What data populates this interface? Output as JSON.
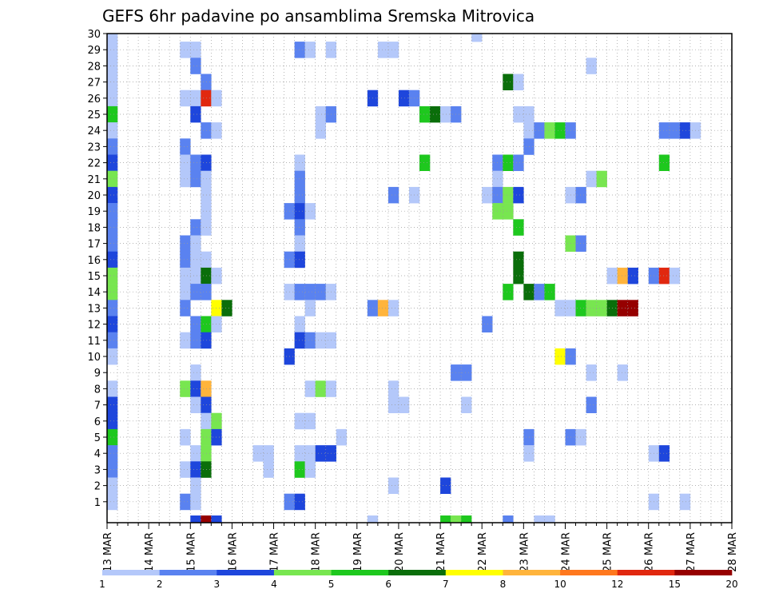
{
  "chart_data": {
    "type": "heatmap",
    "title": "GEFS 6hr padavine po ansamblima Sremska Mitrovica",
    "xlabel": "",
    "ylabel": "",
    "x_ticks": [
      "13 MAR",
      "14 MAR",
      "15 MAR",
      "16 MAR",
      "17 MAR",
      "18 MAR",
      "19 MAR",
      "20 MAR",
      "21 MAR",
      "22 MAR",
      "23 MAR",
      "24 MAR",
      "25 MAR",
      "26 MAR",
      "27 MAR",
      "28 MAR"
    ],
    "y_ticks": [
      1,
      2,
      3,
      4,
      5,
      6,
      7,
      8,
      9,
      10,
      11,
      12,
      13,
      14,
      15,
      16,
      17,
      18,
      19,
      20,
      21,
      22,
      23,
      24,
      25,
      26,
      27,
      28,
      29,
      30
    ],
    "ylim": [
      0,
      30
    ],
    "steps_per_day": 4,
    "grid": true,
    "color_scale": {
      "bounds": [
        1,
        2,
        3,
        4,
        5,
        6,
        7,
        8,
        10,
        12,
        15,
        20
      ],
      "colors": [
        "#b4c8fa",
        "#5a82f0",
        "#1e46dc",
        "#78e650",
        "#1ec81e",
        "#0a6e0a",
        "#ffff00",
        "#ffb43c",
        "#ff781e",
        "#e1280f",
        "#960000"
      ]
    },
    "cells": [
      {
        "x": 0,
        "y": 30,
        "c": 0
      },
      {
        "x": 0,
        "y": 29,
        "c": 0
      },
      {
        "x": 0,
        "y": 28,
        "c": 0
      },
      {
        "x": 0,
        "y": 27,
        "c": 0
      },
      {
        "x": 0,
        "y": 26,
        "c": 0
      },
      {
        "x": 0,
        "y": 25,
        "c": 4
      },
      {
        "x": 0,
        "y": 24,
        "c": 0
      },
      {
        "x": 0,
        "y": 23,
        "c": 1
      },
      {
        "x": 0,
        "y": 22,
        "c": 2
      },
      {
        "x": 0,
        "y": 21,
        "c": 3
      },
      {
        "x": 0,
        "y": 20,
        "c": 2
      },
      {
        "x": 0,
        "y": 19,
        "c": 1
      },
      {
        "x": 0,
        "y": 18,
        "c": 1
      },
      {
        "x": 0,
        "y": 17,
        "c": 1
      },
      {
        "x": 0,
        "y": 16,
        "c": 2
      },
      {
        "x": 0,
        "y": 15,
        "c": 3
      },
      {
        "x": 0,
        "y": 14,
        "c": 3
      },
      {
        "x": 0,
        "y": 13,
        "c": 1
      },
      {
        "x": 0,
        "y": 12,
        "c": 2
      },
      {
        "x": 0,
        "y": 11,
        "c": 1
      },
      {
        "x": 0,
        "y": 10,
        "c": 0
      },
      {
        "x": 0,
        "y": 8,
        "c": 0
      },
      {
        "x": 0,
        "y": 7,
        "c": 2
      },
      {
        "x": 0,
        "y": 6,
        "c": 2
      },
      {
        "x": 0,
        "y": 5,
        "c": 4
      },
      {
        "x": 0,
        "y": 4,
        "c": 1
      },
      {
        "x": 0,
        "y": 3,
        "c": 1
      },
      {
        "x": 0,
        "y": 2,
        "c": 0
      },
      {
        "x": 0,
        "y": 1,
        "c": 0
      },
      {
        "x": 7,
        "y": 29,
        "c": 0
      },
      {
        "x": 8,
        "y": 29,
        "c": 0
      },
      {
        "x": 8,
        "y": 28,
        "c": 1
      },
      {
        "x": 9,
        "y": 27,
        "c": 1
      },
      {
        "x": 7,
        "y": 26,
        "c": 0
      },
      {
        "x": 8,
        "y": 26,
        "c": 0
      },
      {
        "x": 9,
        "y": 26,
        "c": 9
      },
      {
        "x": 10,
        "y": 26,
        "c": 0
      },
      {
        "x": 8,
        "y": 25,
        "c": 2
      },
      {
        "x": 9,
        "y": 24,
        "c": 1
      },
      {
        "x": 10,
        "y": 24,
        "c": 0
      },
      {
        "x": 7,
        "y": 23,
        "c": 1
      },
      {
        "x": 7,
        "y": 22,
        "c": 0
      },
      {
        "x": 8,
        "y": 22,
        "c": 1
      },
      {
        "x": 9,
        "y": 22,
        "c": 2
      },
      {
        "x": 7,
        "y": 21,
        "c": 0
      },
      {
        "x": 8,
        "y": 21,
        "c": 1
      },
      {
        "x": 9,
        "y": 21,
        "c": 0
      },
      {
        "x": 9,
        "y": 20,
        "c": 0
      },
      {
        "x": 9,
        "y": 19,
        "c": 0
      },
      {
        "x": 8,
        "y": 18,
        "c": 1
      },
      {
        "x": 9,
        "y": 18,
        "c": 0
      },
      {
        "x": 7,
        "y": 17,
        "c": 1
      },
      {
        "x": 8,
        "y": 17,
        "c": 0
      },
      {
        "x": 7,
        "y": 16,
        "c": 1
      },
      {
        "x": 8,
        "y": 16,
        "c": 0
      },
      {
        "x": 9,
        "y": 16,
        "c": 0
      },
      {
        "x": 7,
        "y": 15,
        "c": 0
      },
      {
        "x": 8,
        "y": 15,
        "c": 0
      },
      {
        "x": 9,
        "y": 15,
        "c": 5
      },
      {
        "x": 10,
        "y": 15,
        "c": 0
      },
      {
        "x": 7,
        "y": 14,
        "c": 0
      },
      {
        "x": 8,
        "y": 14,
        "c": 1
      },
      {
        "x": 9,
        "y": 14,
        "c": 1
      },
      {
        "x": 7,
        "y": 13,
        "c": 1
      },
      {
        "x": 10,
        "y": 13,
        "c": 6
      },
      {
        "x": 11,
        "y": 13,
        "c": 5
      },
      {
        "x": 8,
        "y": 12,
        "c": 1
      },
      {
        "x": 9,
        "y": 12,
        "c": 4
      },
      {
        "x": 10,
        "y": 12,
        "c": 0
      },
      {
        "x": 7,
        "y": 11,
        "c": 0
      },
      {
        "x": 8,
        "y": 11,
        "c": 1
      },
      {
        "x": 9,
        "y": 11,
        "c": 2
      },
      {
        "x": 8,
        "y": 9,
        "c": 0
      },
      {
        "x": 7,
        "y": 8,
        "c": 3
      },
      {
        "x": 8,
        "y": 8,
        "c": 2
      },
      {
        "x": 9,
        "y": 8,
        "c": 7
      },
      {
        "x": 8,
        "y": 7,
        "c": 0
      },
      {
        "x": 9,
        "y": 7,
        "c": 2
      },
      {
        "x": 9,
        "y": 6,
        "c": 0
      },
      {
        "x": 10,
        "y": 6,
        "c": 3
      },
      {
        "x": 7,
        "y": 5,
        "c": 0
      },
      {
        "x": 9,
        "y": 5,
        "c": 3
      },
      {
        "x": 10,
        "y": 5,
        "c": 2
      },
      {
        "x": 8,
        "y": 4,
        "c": 0
      },
      {
        "x": 9,
        "y": 4,
        "c": 3
      },
      {
        "x": 7,
        "y": 3,
        "c": 0
      },
      {
        "x": 8,
        "y": 3,
        "c": 2
      },
      {
        "x": 9,
        "y": 3,
        "c": 5
      },
      {
        "x": 8,
        "y": 2,
        "c": 0
      },
      {
        "x": 7,
        "y": 1,
        "c": 1
      },
      {
        "x": 8,
        "y": 1,
        "c": 0
      },
      {
        "x": 8,
        "y": 0,
        "c": 2
      },
      {
        "x": 9,
        "y": 0,
        "c": 10
      },
      {
        "x": 10,
        "y": 0,
        "c": 2
      },
      {
        "x": 14,
        "y": 4,
        "c": 0
      },
      {
        "x": 15,
        "y": 4,
        "c": 0
      },
      {
        "x": 15,
        "y": 3,
        "c": 0
      },
      {
        "x": 18,
        "y": 29,
        "c": 1
      },
      {
        "x": 19,
        "y": 29,
        "c": 0
      },
      {
        "x": 21,
        "y": 29,
        "c": 0
      },
      {
        "x": 20,
        "y": 25,
        "c": 0
      },
      {
        "x": 21,
        "y": 25,
        "c": 1
      },
      {
        "x": 20,
        "y": 24,
        "c": 0
      },
      {
        "x": 18,
        "y": 22,
        "c": 0
      },
      {
        "x": 18,
        "y": 21,
        "c": 1
      },
      {
        "x": 18,
        "y": 20,
        "c": 1
      },
      {
        "x": 17,
        "y": 19,
        "c": 1
      },
      {
        "x": 18,
        "y": 19,
        "c": 2
      },
      {
        "x": 19,
        "y": 19,
        "c": 0
      },
      {
        "x": 18,
        "y": 18,
        "c": 1
      },
      {
        "x": 18,
        "y": 17,
        "c": 0
      },
      {
        "x": 17,
        "y": 16,
        "c": 1
      },
      {
        "x": 18,
        "y": 16,
        "c": 2
      },
      {
        "x": 17,
        "y": 14,
        "c": 0
      },
      {
        "x": 18,
        "y": 14,
        "c": 1
      },
      {
        "x": 19,
        "y": 14,
        "c": 1
      },
      {
        "x": 20,
        "y": 14,
        "c": 1
      },
      {
        "x": 21,
        "y": 14,
        "c": 0
      },
      {
        "x": 19,
        "y": 13,
        "c": 0
      },
      {
        "x": 18,
        "y": 12,
        "c": 0
      },
      {
        "x": 18,
        "y": 11,
        "c": 2
      },
      {
        "x": 19,
        "y": 11,
        "c": 1
      },
      {
        "x": 20,
        "y": 11,
        "c": 0
      },
      {
        "x": 21,
        "y": 11,
        "c": 0
      },
      {
        "x": 17,
        "y": 10,
        "c": 2
      },
      {
        "x": 19,
        "y": 8,
        "c": 0
      },
      {
        "x": 20,
        "y": 8,
        "c": 3
      },
      {
        "x": 21,
        "y": 8,
        "c": 0
      },
      {
        "x": 18,
        "y": 6,
        "c": 0
      },
      {
        "x": 19,
        "y": 6,
        "c": 0
      },
      {
        "x": 22,
        "y": 5,
        "c": 0
      },
      {
        "x": 18,
        "y": 4,
        "c": 0
      },
      {
        "x": 19,
        "y": 4,
        "c": 0
      },
      {
        "x": 20,
        "y": 4,
        "c": 2
      },
      {
        "x": 21,
        "y": 4,
        "c": 2
      },
      {
        "x": 18,
        "y": 3,
        "c": 4
      },
      {
        "x": 19,
        "y": 3,
        "c": 0
      },
      {
        "x": 17,
        "y": 1,
        "c": 1
      },
      {
        "x": 18,
        "y": 1,
        "c": 2
      },
      {
        "x": 26,
        "y": 29,
        "c": 0
      },
      {
        "x": 27,
        "y": 29,
        "c": 0
      },
      {
        "x": 25,
        "y": 26,
        "c": 2
      },
      {
        "x": 28,
        "y": 26,
        "c": 2
      },
      {
        "x": 29,
        "y": 26,
        "c": 1
      },
      {
        "x": 30,
        "y": 25,
        "c": 4
      },
      {
        "x": 31,
        "y": 25,
        "c": 5
      },
      {
        "x": 32,
        "y": 25,
        "c": 0
      },
      {
        "x": 33,
        "y": 25,
        "c": 1
      },
      {
        "x": 30,
        "y": 22,
        "c": 4
      },
      {
        "x": 27,
        "y": 20,
        "c": 1
      },
      {
        "x": 29,
        "y": 20,
        "c": 0
      },
      {
        "x": 25,
        "y": 13,
        "c": 1
      },
      {
        "x": 26,
        "y": 13,
        "c": 7
      },
      {
        "x": 27,
        "y": 13,
        "c": 0
      },
      {
        "x": 33,
        "y": 9,
        "c": 1
      },
      {
        "x": 34,
        "y": 9,
        "c": 1
      },
      {
        "x": 27,
        "y": 8,
        "c": 0
      },
      {
        "x": 27,
        "y": 7,
        "c": 0
      },
      {
        "x": 28,
        "y": 7,
        "c": 0
      },
      {
        "x": 34,
        "y": 7,
        "c": 0
      },
      {
        "x": 27,
        "y": 2,
        "c": 0
      },
      {
        "x": 32,
        "y": 2,
        "c": 2
      },
      {
        "x": 25,
        "y": 0,
        "c": 0
      },
      {
        "x": 32,
        "y": 0,
        "c": 4
      },
      {
        "x": 33,
        "y": 0,
        "c": 3
      },
      {
        "x": 34,
        "y": 0,
        "c": 4
      },
      {
        "x": 35,
        "y": 30,
        "c": 0
      },
      {
        "x": 38,
        "y": 27,
        "c": 5
      },
      {
        "x": 39,
        "y": 27,
        "c": 0
      },
      {
        "x": 39,
        "y": 25,
        "c": 0
      },
      {
        "x": 40,
        "y": 25,
        "c": 0
      },
      {
        "x": 40,
        "y": 24,
        "c": 0
      },
      {
        "x": 41,
        "y": 24,
        "c": 1
      },
      {
        "x": 42,
        "y": 24,
        "c": 3
      },
      {
        "x": 43,
        "y": 24,
        "c": 4
      },
      {
        "x": 44,
        "y": 24,
        "c": 1
      },
      {
        "x": 40,
        "y": 23,
        "c": 1
      },
      {
        "x": 37,
        "y": 22,
        "c": 1
      },
      {
        "x": 38,
        "y": 22,
        "c": 4
      },
      {
        "x": 39,
        "y": 22,
        "c": 1
      },
      {
        "x": 37,
        "y": 21,
        "c": 0
      },
      {
        "x": 36,
        "y": 20,
        "c": 0
      },
      {
        "x": 37,
        "y": 20,
        "c": 1
      },
      {
        "x": 38,
        "y": 20,
        "c": 3
      },
      {
        "x": 39,
        "y": 20,
        "c": 2
      },
      {
        "x": 37,
        "y": 19,
        "c": 3
      },
      {
        "x": 38,
        "y": 19,
        "c": 3
      },
      {
        "x": 39,
        "y": 18,
        "c": 4
      },
      {
        "x": 39,
        "y": 16,
        "c": 5
      },
      {
        "x": 39,
        "y": 15,
        "c": 5
      },
      {
        "x": 38,
        "y": 14,
        "c": 4
      },
      {
        "x": 40,
        "y": 14,
        "c": 5
      },
      {
        "x": 41,
        "y": 14,
        "c": 1
      },
      {
        "x": 42,
        "y": 14,
        "c": 4
      },
      {
        "x": 36,
        "y": 12,
        "c": 1
      },
      {
        "x": 40,
        "y": 5,
        "c": 1
      },
      {
        "x": 40,
        "y": 4,
        "c": 0
      },
      {
        "x": 38,
        "y": 0,
        "c": 1
      },
      {
        "x": 41,
        "y": 0,
        "c": 0
      },
      {
        "x": 42,
        "y": 0,
        "c": 0
      },
      {
        "x": 44,
        "y": 20,
        "c": 0
      },
      {
        "x": 45,
        "y": 20,
        "c": 1
      },
      {
        "x": 44,
        "y": 17,
        "c": 3
      },
      {
        "x": 45,
        "y": 17,
        "c": 1
      },
      {
        "x": 43,
        "y": 13,
        "c": 0
      },
      {
        "x": 44,
        "y": 13,
        "c": 0
      },
      {
        "x": 45,
        "y": 13,
        "c": 4
      },
      {
        "x": 46,
        "y": 13,
        "c": 3
      },
      {
        "x": 47,
        "y": 13,
        "c": 3
      },
      {
        "x": 43,
        "y": 10,
        "c": 6
      },
      {
        "x": 44,
        "y": 10,
        "c": 1
      },
      {
        "x": 44,
        "y": 5,
        "c": 1
      },
      {
        "x": 45,
        "y": 5,
        "c": 0
      },
      {
        "x": 46,
        "y": 28,
        "c": 0
      },
      {
        "x": 46,
        "y": 21,
        "c": 0
      },
      {
        "x": 47,
        "y": 21,
        "c": 3
      },
      {
        "x": 46,
        "y": 9,
        "c": 0
      },
      {
        "x": 46,
        "y": 7,
        "c": 1
      },
      {
        "x": 48,
        "y": 15,
        "c": 0
      },
      {
        "x": 49,
        "y": 15,
        "c": 7
      },
      {
        "x": 50,
        "y": 15,
        "c": 2
      },
      {
        "x": 48,
        "y": 13,
        "c": 5
      },
      {
        "x": 49,
        "y": 13,
        "c": 10
      },
      {
        "x": 50,
        "y": 13,
        "c": 10
      },
      {
        "x": 49,
        "y": 9,
        "c": 0
      },
      {
        "x": 52,
        "y": 4,
        "c": 0
      },
      {
        "x": 53,
        "y": 4,
        "c": 2
      },
      {
        "x": 52,
        "y": 1,
        "c": 0
      },
      {
        "x": 52,
        "y": 15,
        "c": 1
      },
      {
        "x": 53,
        "y": 15,
        "c": 9
      },
      {
        "x": 54,
        "y": 15,
        "c": 0
      },
      {
        "x": 53,
        "y": 24,
        "c": 1
      },
      {
        "x": 54,
        "y": 24,
        "c": 1
      },
      {
        "x": 55,
        "y": 24,
        "c": 2
      },
      {
        "x": 56,
        "y": 24,
        "c": 0
      },
      {
        "x": 53,
        "y": 22,
        "c": 4
      },
      {
        "x": 55,
        "y": 1,
        "c": 0
      }
    ]
  }
}
